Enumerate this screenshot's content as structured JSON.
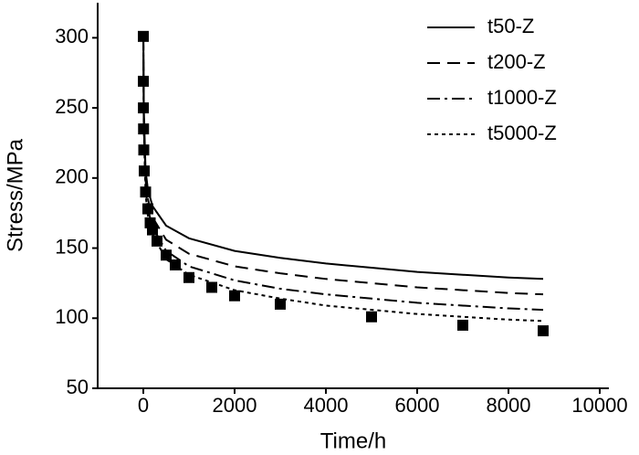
{
  "chart_data": {
    "type": "line",
    "xlabel": "Time/h",
    "ylabel": "Stress/MPa",
    "xlim": [
      -1000,
      10200
    ],
    "ylim": [
      50,
      325
    ],
    "xticks": [
      0,
      2000,
      4000,
      6000,
      8000,
      10000
    ],
    "yticks": [
      50,
      100,
      150,
      200,
      250,
      300
    ],
    "legend": "upper right",
    "x": [
      1,
      10,
      50,
      100,
      200,
      500,
      1000,
      2000,
      3000,
      4000,
      5000,
      6000,
      7000,
      8000,
      8760
    ],
    "series": [
      {
        "name": "t50-Z",
        "color": "#000000",
        "linestyle": "solid",
        "values": [
          300,
          250,
          205,
          192,
          180,
          166,
          157,
          148,
          143,
          139,
          136,
          133,
          131,
          129,
          128
        ]
      },
      {
        "name": "t200-Z",
        "color": "#000000",
        "linestyle": "dashed",
        "values": [
          300,
          245,
          198,
          185,
          172,
          156,
          146,
          137,
          132,
          128,
          125,
          122,
          120,
          118,
          117
        ]
      },
      {
        "name": "t1000-Z",
        "color": "#000000",
        "linestyle": "dashdot",
        "values": [
          300,
          240,
          192,
          178,
          165,
          148,
          137,
          127,
          121,
          117,
          114,
          111,
          109,
          107,
          106
        ]
      },
      {
        "name": "t5000-Z",
        "color": "#000000",
        "linestyle": "dotted",
        "values": [
          300,
          235,
          188,
          173,
          160,
          142,
          131,
          120,
          114,
          109,
          106,
          103,
          101,
          99,
          98
        ]
      }
    ],
    "points": {
      "marker": "square",
      "color": "#000000",
      "x": [
        0,
        1,
        2,
        5,
        10,
        20,
        50,
        100,
        150,
        200,
        300,
        500,
        700,
        1000,
        1500,
        2000,
        3000,
        5000,
        7000,
        8760
      ],
      "y": [
        301,
        269,
        250,
        235,
        220,
        205,
        190,
        178,
        168,
        163,
        155,
        145,
        138,
        129,
        122,
        116,
        110,
        101,
        95,
        91
      ]
    }
  }
}
